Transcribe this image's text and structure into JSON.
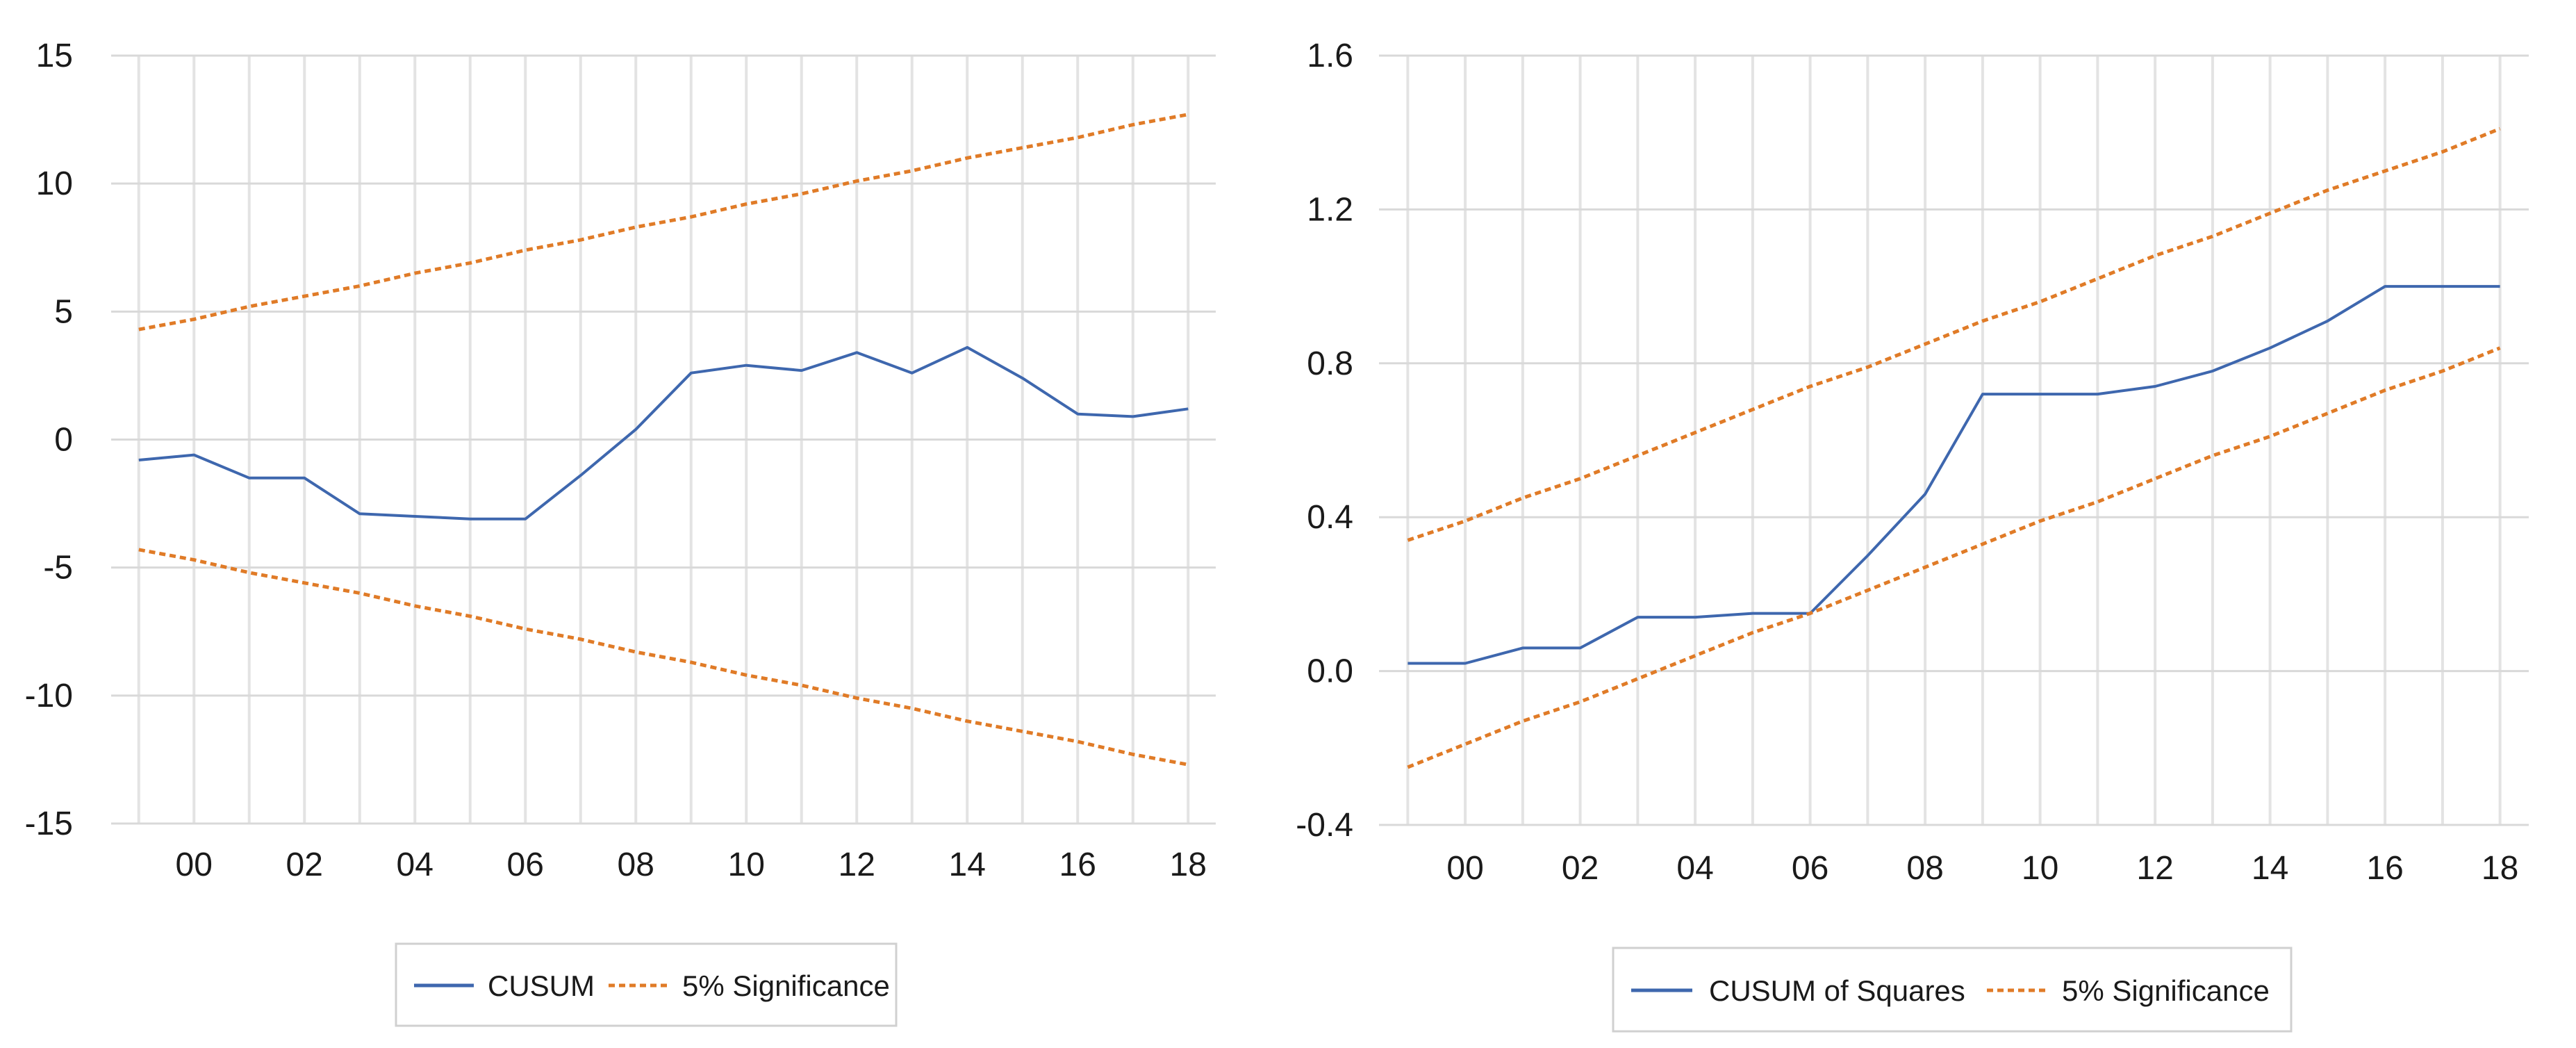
{
  "chart_data": [
    {
      "type": "line",
      "title": "",
      "xlabel": "",
      "ylabel": "",
      "x": [
        1999,
        2000,
        2001,
        2002,
        2003,
        2004,
        2005,
        2006,
        2007,
        2008,
        2009,
        2010,
        2011,
        2012,
        2013,
        2014,
        2015,
        2016,
        2017,
        2018
      ],
      "xlim": [
        1998.5,
        2018.5
      ],
      "ylim": [
        -15,
        15
      ],
      "yticks": [
        15,
        10,
        5,
        0,
        -5,
        -10,
        -15
      ],
      "ytick_labels": [
        "15",
        "10",
        "5",
        "0",
        "-5",
        "-10",
        "-15"
      ],
      "xticks": [
        2000,
        2002,
        2004,
        2006,
        2008,
        2010,
        2012,
        2014,
        2016,
        2018
      ],
      "xtick_labels": [
        "00",
        "02",
        "04",
        "06",
        "08",
        "10",
        "12",
        "14",
        "16",
        "18"
      ],
      "grid": "vertical-and-horizontal",
      "legend_position": "bottom",
      "series": [
        {
          "name": "CUSUM",
          "style": "solid",
          "color": "#3e67ae",
          "values": [
            -0.8,
            -0.6,
            -1.5,
            -1.5,
            -2.9,
            -3.0,
            -3.1,
            -3.1,
            -1.4,
            0.4,
            2.6,
            2.9,
            2.7,
            3.4,
            2.6,
            3.6,
            2.4,
            1.0,
            0.9,
            1.2
          ]
        },
        {
          "name": "5% Significance",
          "style": "dashed",
          "color": "#e07b27",
          "values": [
            4.3,
            4.7,
            5.2,
            5.6,
            6.0,
            6.5,
            6.9,
            7.4,
            7.8,
            8.3,
            8.7,
            9.2,
            9.6,
            10.1,
            10.5,
            11.0,
            11.4,
            11.8,
            12.3,
            12.7
          ]
        },
        {
          "name": "5% Significance",
          "style": "dashed",
          "color": "#e07b27",
          "show_in_legend": false,
          "values": [
            -4.3,
            -4.7,
            -5.2,
            -5.6,
            -6.0,
            -6.5,
            -6.9,
            -7.4,
            -7.8,
            -8.3,
            -8.7,
            -9.2,
            -9.6,
            -10.1,
            -10.5,
            -11.0,
            -11.4,
            -11.8,
            -12.3,
            -12.7
          ]
        }
      ]
    },
    {
      "type": "line",
      "title": "",
      "xlabel": "",
      "ylabel": "",
      "x": [
        1999,
        2000,
        2001,
        2002,
        2003,
        2004,
        2005,
        2006,
        2007,
        2008,
        2009,
        2010,
        2011,
        2012,
        2013,
        2014,
        2015,
        2016,
        2017,
        2018
      ],
      "xlim": [
        1998.5,
        2018.5
      ],
      "ylim": [
        -0.4,
        1.6
      ],
      "yticks": [
        1.6,
        1.2,
        0.8,
        0.4,
        0.0,
        -0.4
      ],
      "ytick_labels": [
        "1.6",
        "1.2",
        "0.8",
        "0.4",
        "0.0",
        "-0.4"
      ],
      "xticks": [
        2000,
        2002,
        2004,
        2006,
        2008,
        2010,
        2012,
        2014,
        2016,
        2018
      ],
      "xtick_labels": [
        "00",
        "02",
        "04",
        "06",
        "08",
        "10",
        "12",
        "14",
        "16",
        "18"
      ],
      "grid": "vertical-and-horizontal",
      "legend_position": "bottom",
      "series": [
        {
          "name": "CUSUM of Squares",
          "style": "solid",
          "color": "#3e67ae",
          "values": [
            0.02,
            0.02,
            0.06,
            0.06,
            0.14,
            0.14,
            0.15,
            0.15,
            0.3,
            0.46,
            0.72,
            0.72,
            0.72,
            0.74,
            0.78,
            0.84,
            0.91,
            1.0,
            1.0,
            1.0
          ]
        },
        {
          "name": "5% Significance",
          "style": "dashed",
          "color": "#e07b27",
          "values": [
            0.34,
            0.39,
            0.45,
            0.5,
            0.56,
            0.62,
            0.68,
            0.74,
            0.79,
            0.85,
            0.91,
            0.96,
            1.02,
            1.08,
            1.13,
            1.19,
            1.25,
            1.3,
            1.35,
            1.41
          ]
        },
        {
          "name": "5% Significance",
          "style": "dashed",
          "color": "#e07b27",
          "show_in_legend": false,
          "values": [
            -0.25,
            -0.19,
            -0.13,
            -0.08,
            -0.02,
            0.04,
            0.1,
            0.15,
            0.21,
            0.27,
            0.33,
            0.39,
            0.44,
            0.5,
            0.56,
            0.61,
            0.67,
            0.73,
            0.78,
            0.84
          ]
        }
      ]
    }
  ]
}
